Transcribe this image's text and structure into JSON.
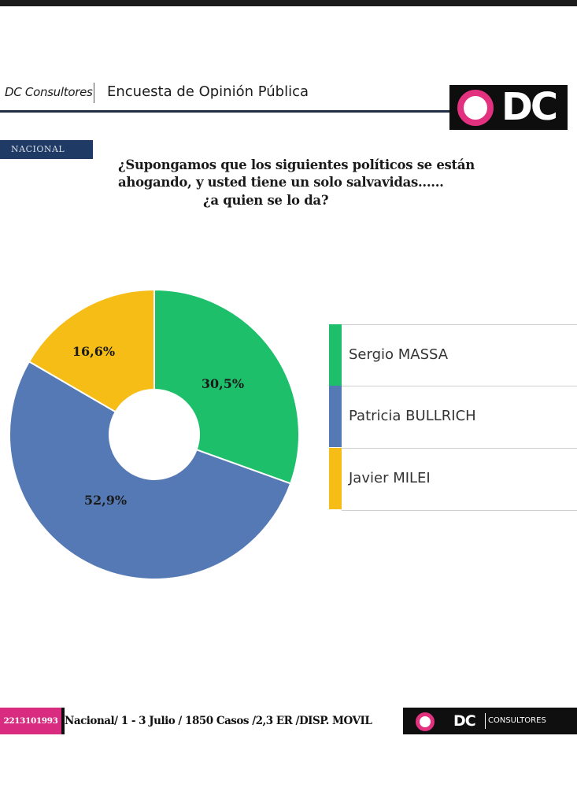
{
  "header": {
    "brand": "DC Consultores",
    "title": "Encuesta de Opinión Pública",
    "logo_text": "DC"
  },
  "tag": "NACIONAL",
  "question": {
    "line1": "¿Supongamos que los siguientes políticos se están",
    "line2": "ahogando, y usted tiene un solo salvavidas......",
    "line3": "¿a quien se lo da?"
  },
  "chart_data": {
    "type": "pie",
    "donut": true,
    "title": "",
    "legend_position": "right",
    "categories": [
      "Sergio MASSA",
      "Patricia BULLRICH",
      "Javier MILEI"
    ],
    "values": [
      30.5,
      52.9,
      16.6
    ],
    "value_labels": [
      "30,5%",
      "52,9%",
      "16,6%"
    ],
    "colors": [
      "#1dbf6b",
      "#5479b4",
      "#f5bd16"
    ]
  },
  "footer": {
    "phone": "2213101993",
    "info": "Nacional/ 1 - 3 Julio / 1850 Casos /2,3 ER /DISP. MOVIL",
    "logo_text": "DC",
    "consultores": "CONSULTORES"
  }
}
